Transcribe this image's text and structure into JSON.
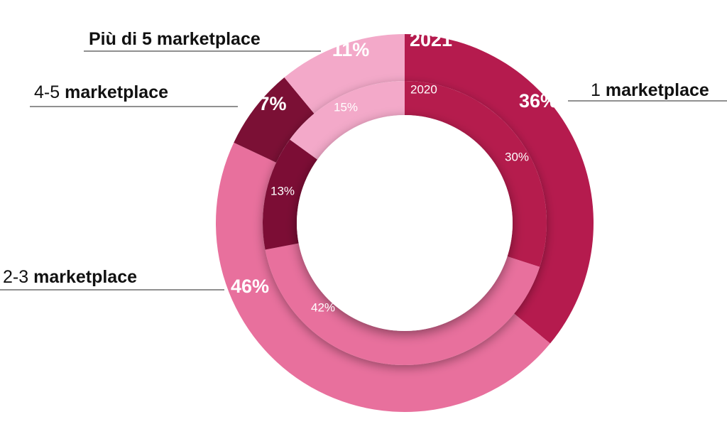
{
  "chart_data": {
    "type": "pie",
    "subtype": "nested-donut",
    "categories": [
      "1 marketplace",
      "2-3 marketplace",
      "4-5 marketplace",
      "Più di 5 marketplace"
    ],
    "category_labels": [
      {
        "prefix": "1 ",
        "bold": "marketplace"
      },
      {
        "prefix": "2-3 ",
        "bold": "marketplace"
      },
      {
        "prefix": "4-5 ",
        "bold": "marketplace"
      },
      {
        "prefix": "",
        "bold": "Più di 5 marketplace"
      }
    ],
    "colors": [
      "#b51b4e",
      "#e8709d",
      "#7b1035",
      "#f3a9c9"
    ],
    "series": [
      {
        "name": "2021",
        "ring": "outer",
        "values": [
          36,
          46,
          7,
          11
        ],
        "labels": [
          "36%",
          "46%",
          "7%",
          "11%"
        ]
      },
      {
        "name": "2020",
        "ring": "inner",
        "values": [
          30,
          42,
          13,
          15
        ],
        "labels": [
          "30%",
          "42%",
          "13%",
          "15%"
        ]
      }
    ],
    "title": "",
    "legend": "none"
  }
}
